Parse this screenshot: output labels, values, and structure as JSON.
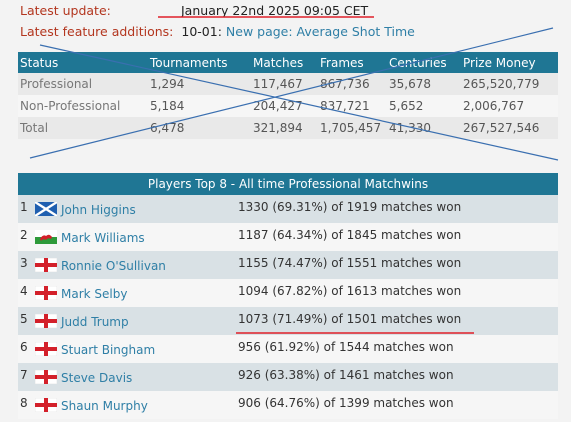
{
  "header": {
    "latest_update_label": "Latest update:",
    "latest_update_value": "January 22nd 2025 09:05 CET",
    "feature_label": "Latest feature additions:",
    "feature_date": "10-01:",
    "feature_link": "New page: Average Shot Time"
  },
  "stats": {
    "columns": [
      "Status",
      "Tournaments",
      "Matches",
      "Frames",
      "Centuries",
      "Prize Money"
    ],
    "rows": [
      [
        "Professional",
        "1,294",
        "117,467",
        "867,736",
        "35,678",
        "265,520,779"
      ],
      [
        "Non-Professional",
        "5,184",
        "204,427",
        "837,721",
        "5,652",
        "2,006,767"
      ],
      [
        "Total",
        "6,478",
        "321,894",
        "1,705,457",
        "41,330",
        "267,527,546"
      ]
    ]
  },
  "players": {
    "title": "Players Top 8 - All time Professional Matchwins",
    "rows": [
      {
        "rank": "1",
        "name": "John Higgins",
        "flag": "scotland-flag-icon",
        "wins": "1330 (69.31%) of 1919 matches won"
      },
      {
        "rank": "2",
        "name": "Mark Williams",
        "flag": "wales-flag-icon",
        "wins": "1187 (64.34%) of 1845 matches won"
      },
      {
        "rank": "3",
        "name": "Ronnie O'Sullivan",
        "flag": "england-flag-icon",
        "wins": "1155 (74.47%) of 1551 matches won"
      },
      {
        "rank": "4",
        "name": "Mark Selby",
        "flag": "england-flag-icon",
        "wins": "1094 (67.82%) of 1613 matches won"
      },
      {
        "rank": "5",
        "name": "Judd Trump",
        "flag": "england-flag-icon",
        "wins": "1073 (71.49%) of 1501 matches won"
      },
      {
        "rank": "6",
        "name": "Stuart Bingham",
        "flag": "england-flag-icon",
        "wins": "956 (61.92%) of 1544 matches won"
      },
      {
        "rank": "7",
        "name": "Steve Davis",
        "flag": "england-flag-icon",
        "wins": "926 (63.38%) of 1461 matches won"
      },
      {
        "rank": "8",
        "name": "Shaun Murphy",
        "flag": "england-flag-icon",
        "wins": "906 (64.76%) of 1399 matches won"
      }
    ]
  },
  "colors": {
    "header_bg": "#1f7694",
    "label_red": "#b3361f",
    "link_blue": "#2f7fa6",
    "annotation_red": "#e0202a",
    "annotation_blue": "#3a6fb0"
  }
}
